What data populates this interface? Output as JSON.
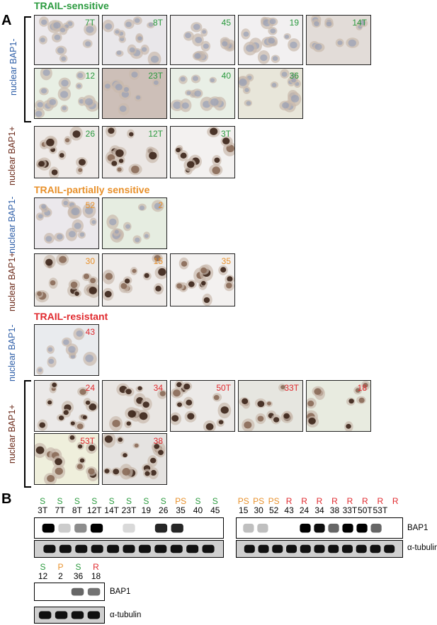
{
  "panel_a": {
    "letter": "A",
    "sections": [
      {
        "title": "TRAIL-sensitive",
        "color": "#2a9a3e"
      },
      {
        "title": "TRAIL-partially sensitive",
        "color": "#e8902a"
      },
      {
        "title": "TRAIL-resistant",
        "color": "#e0292e"
      }
    ],
    "row_labels": {
      "neg": "nuclear BAP1-",
      "pos": "nuclear BAP1+"
    },
    "tiles": {
      "s_neg_1": [
        "7T",
        "8T",
        "45",
        "19",
        "14T"
      ],
      "s_neg_2": [
        "12",
        "23T",
        "40",
        "36"
      ],
      "s_pos": [
        "26",
        "12T",
        "3T"
      ],
      "ps_neg": [
        "52",
        "2"
      ],
      "ps_pos": [
        "30",
        "15",
        "35"
      ],
      "r_neg": [
        "43"
      ],
      "r_pos_1": [
        "24",
        "34",
        "50T",
        "33T",
        "18"
      ],
      "r_pos_2": [
        "53T",
        "38"
      ]
    }
  },
  "panel_b": {
    "letter": "B",
    "blot1": {
      "classes": [
        "S",
        "S",
        "S",
        "S",
        "S",
        "S",
        "S",
        "S",
        "PS",
        "S",
        "S"
      ],
      "samples": [
        "3T",
        "7T",
        "8T",
        "12T",
        "14T",
        "23T",
        "19",
        "26",
        "35",
        "40",
        "45"
      ],
      "bap1": [
        1.0,
        0.2,
        0.45,
        1.0,
        0,
        0.15,
        0,
        0.85,
        0.85,
        0,
        0
      ]
    },
    "blot2": {
      "classes": [
        "PS",
        "PS",
        "PS",
        "R",
        "R",
        "R",
        "R",
        "R",
        "R",
        "R",
        "R"
      ],
      "samples": [
        "15",
        "30",
        "52",
        "43",
        "24",
        "34",
        "38",
        "33T",
        "50T",
        "53T",
        ""
      ],
      "bap1": [
        0.25,
        0.25,
        0,
        0,
        1.0,
        0.95,
        0.6,
        1.0,
        1.0,
        0.6
      ]
    },
    "blot3": {
      "classes": [
        "S",
        "P",
        "S",
        "R"
      ],
      "samples": [
        "12",
        "2",
        "36",
        "18"
      ],
      "bap1": [
        0,
        0,
        0.6,
        0.55
      ]
    },
    "labels": {
      "bap1": "BAP1",
      "tubulin": "α-tubulin"
    },
    "class_colors": {
      "S": "#2a9a3e",
      "PS": "#e8902a",
      "P": "#e8902a",
      "R": "#e0292e"
    }
  }
}
